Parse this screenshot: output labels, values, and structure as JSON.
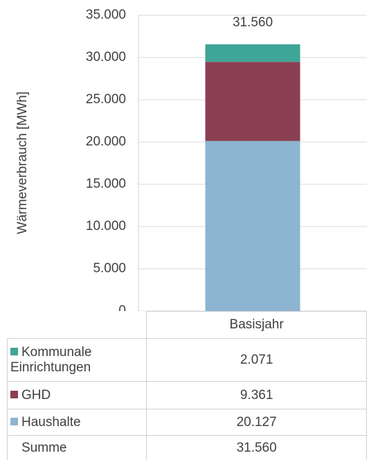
{
  "chart_data": {
    "type": "stacked_bar",
    "y_axis_label": "Wärmeverbrauch [MWh]",
    "categories": [
      "Basisjahr"
    ],
    "series": [
      {
        "name": "Haushalte",
        "color": "#8db4d0",
        "values": [
          20127
        ],
        "value_labels": [
          "20.127"
        ]
      },
      {
        "name": "GHD",
        "color": "#8b3f52",
        "values": [
          9361
        ],
        "value_labels": [
          "9.361"
        ]
      },
      {
        "name": "Kommunale Einrichtungen",
        "color": "#3fa596",
        "values": [
          2071
        ],
        "value_labels": [
          "2.071"
        ]
      }
    ],
    "total": {
      "name": "Summe",
      "values": [
        31560
      ],
      "value_labels": [
        "31.560"
      ]
    },
    "ylim": [
      0,
      35000
    ],
    "yticks": [
      0,
      {
        "value": 5000,
        "label": "5.000"
      },
      {
        "value": 10000,
        "label": "10.000"
      },
      {
        "value": 15000,
        "label": "15.000"
      },
      {
        "value": 20000,
        "label": "20.000"
      },
      {
        "value": 25000,
        "label": "25.000"
      },
      {
        "value": 30000,
        "label": "30.000"
      },
      {
        "value": 35000,
        "label": "35.000"
      }
    ],
    "grid": true
  }
}
